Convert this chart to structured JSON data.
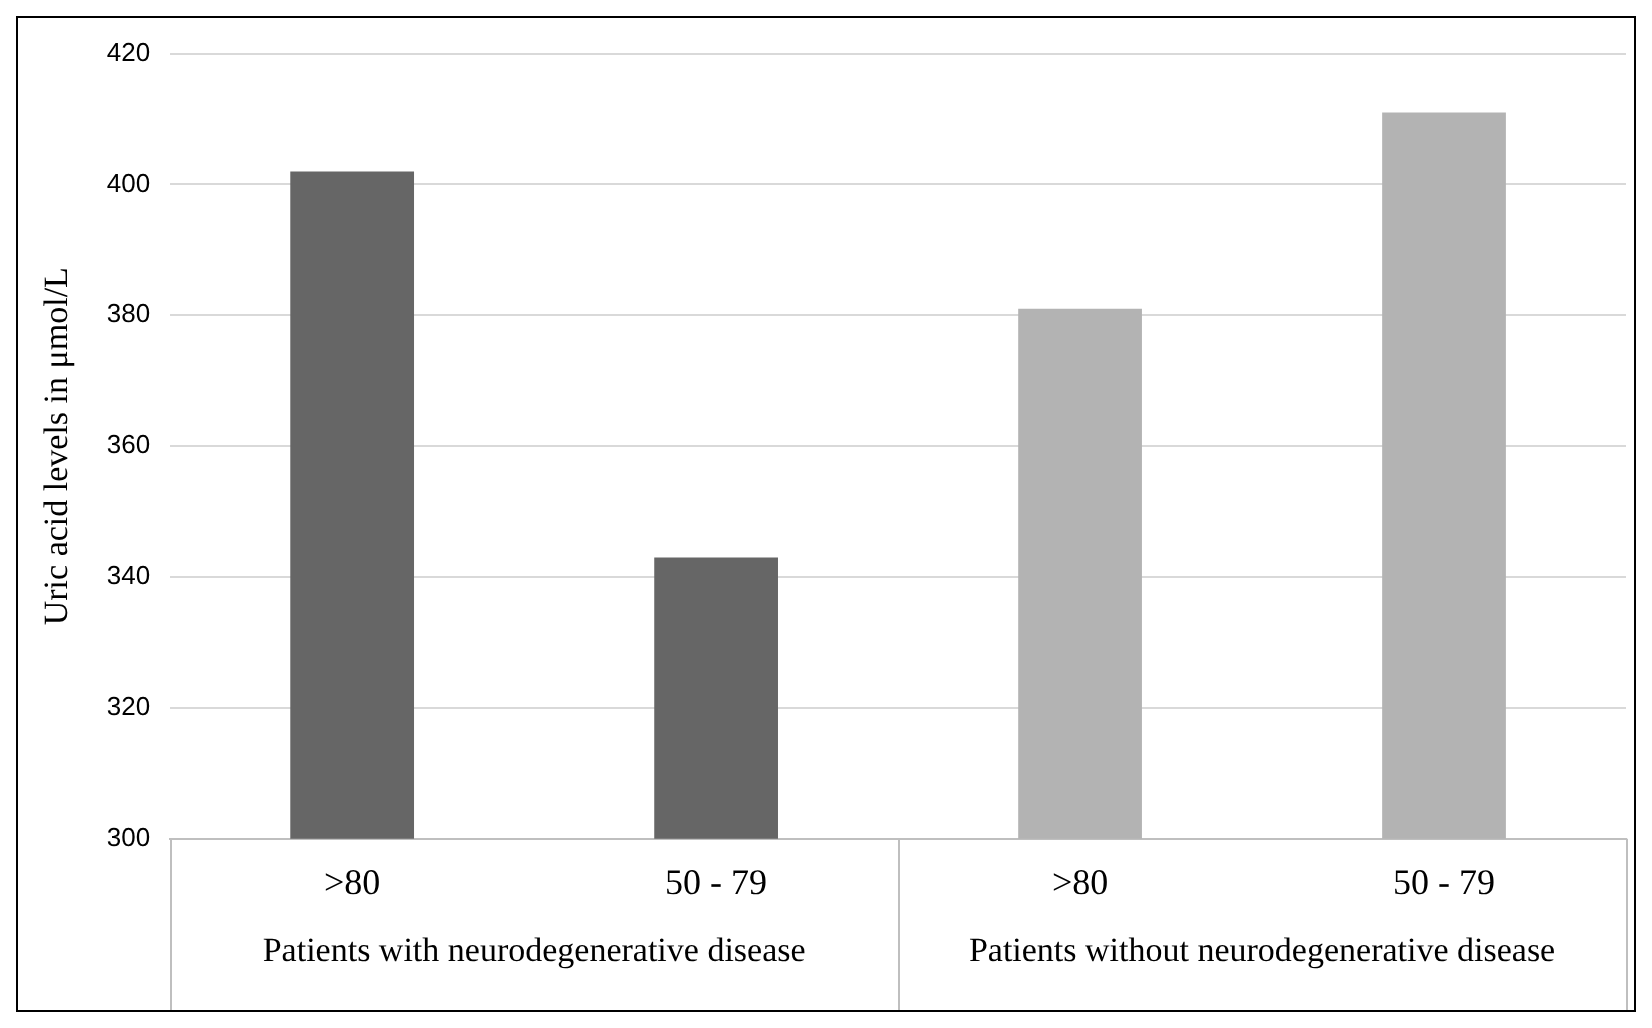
{
  "chart_data": {
    "type": "bar",
    "ylabel": "Uric acid levels in μmol/L",
    "categories": [
      ">80",
      "50 - 79",
      ">80",
      "50 - 79"
    ],
    "values": [
      402,
      343,
      381,
      411
    ],
    "colors": [
      "#666666",
      "#666666",
      "#b3b3b3",
      "#b3b3b3"
    ],
    "ylim": [
      300,
      420
    ],
    "yticks": [
      300,
      320,
      340,
      360,
      380,
      400,
      420
    ],
    "grid": "y",
    "legend": false,
    "annotations": [
      "Patients with neurodegenerative disease",
      "Patients without neurodegenerative disease"
    ]
  }
}
